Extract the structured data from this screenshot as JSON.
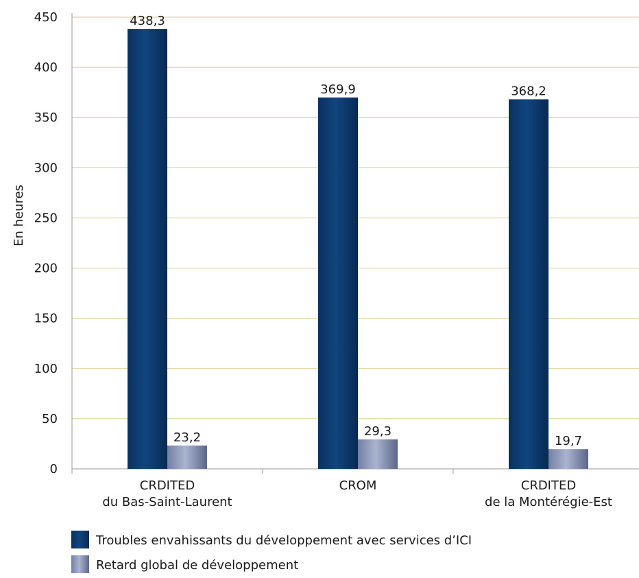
{
  "chart_data": {
    "type": "bar",
    "title": "",
    "xlabel": "",
    "ylabel": "En heures",
    "ylim": [
      0,
      450
    ],
    "yticks": [
      0,
      50,
      100,
      150,
      200,
      250,
      300,
      350,
      400,
      450
    ],
    "grid": true,
    "legend_position": "bottom-left",
    "categories": [
      [
        "CRDITED",
        "du Bas-Saint-Laurent"
      ],
      [
        "CROM"
      ],
      [
        "CRDITED",
        "de la Montérégie-Est"
      ]
    ],
    "series": [
      {
        "name": "Troubles envahissants du développement avec services d’ICI",
        "values": [
          438.3,
          369.9,
          368.2
        ],
        "labels": [
          "438,3",
          "369,9",
          "368,2"
        ],
        "color": "#0d3d73"
      },
      {
        "name": "Retard global de développement",
        "values": [
          23.2,
          29.3,
          19.7
        ],
        "labels": [
          "23,2",
          "29,3",
          "19,7"
        ],
        "color": "#8f9bbd"
      }
    ],
    "colors": {
      "grid": "#d9c98a",
      "axis": "#999999"
    }
  }
}
